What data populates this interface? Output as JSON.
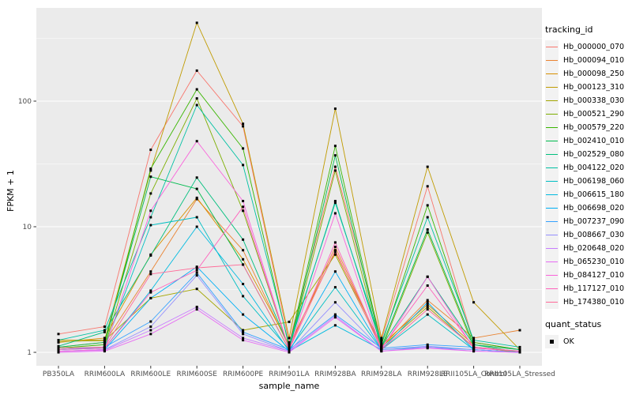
{
  "figure": {
    "background": "#FFFFFF",
    "panel_background": "#EBEBEB",
    "grid_color": "#FFFFFF",
    "tick_label_color": "#4D4D4D",
    "point_color": "#000000"
  },
  "axes": {
    "x_label": "sample_name",
    "y_label": "FPKM + 1",
    "y_tick_labels": [
      "1",
      "10",
      "100"
    ],
    "y_tick_values": [
      1,
      10,
      100
    ],
    "y_minor_values": [
      3.1623,
      31.623,
      316.23
    ]
  },
  "legend": {
    "tracking_title": "tracking_id",
    "quant_title": "quant_status",
    "quant_items": [
      {
        "label": "OK",
        "symbol": "black-square"
      }
    ]
  },
  "chart_data": {
    "type": "line",
    "title": "",
    "xlabel": "sample_name",
    "ylabel": "FPKM + 1",
    "y_scale": "log10",
    "ylim": [
      1,
      450
    ],
    "grid": true,
    "legend_position": "right",
    "point_shape": "square",
    "point_color": "#000000",
    "categories": [
      "PB350LA",
      "RRIM600LA",
      "RRIM600LE",
      "RRIM600SE",
      "RRIM600PE",
      "RRIM901LA",
      "RRIM928BA",
      "RRIM928LA",
      "RRIM928LE",
      "RRII105LA_Control",
      "RRII105LA_Stressed"
    ],
    "series": [
      {
        "name": "Hb_000000_070",
        "color": "#F8766D",
        "values": [
          1.4,
          1.6,
          41,
          175,
          63,
          1.2,
          30,
          1.25,
          21,
          1.2,
          1.05
        ]
      },
      {
        "name": "Hb_000094_010",
        "color": "#EA8331",
        "values": [
          1.1,
          1.2,
          4.4,
          16.6,
          6.5,
          1.1,
          6.9,
          1.1,
          2.6,
          1.3,
          1.5
        ]
      },
      {
        "name": "Hb_000098_250",
        "color": "#D89000",
        "values": [
          1.2,
          1.3,
          6.0,
          17.0,
          5.5,
          1.15,
          6.3,
          1.15,
          2.4,
          1.15,
          1.05
        ]
      },
      {
        "name": "Hb_000123_310",
        "color": "#C09B00",
        "values": [
          1.25,
          1.25,
          28,
          420,
          66,
          1.3,
          87,
          1.3,
          30,
          2.5,
          1.05
        ]
      },
      {
        "name": "Hb_000338_030",
        "color": "#A3A500",
        "values": [
          1.22,
          1.24,
          2.7,
          3.2,
          1.5,
          1.75,
          6.0,
          1.1,
          2.3,
          1.1,
          1.0
        ]
      },
      {
        "name": "Hb_000521_290",
        "color": "#7CAE00",
        "values": [
          1.05,
          1.1,
          18.4,
          105,
          13.4,
          1.05,
          28,
          1.05,
          9.0,
          1.1,
          1.0
        ]
      },
      {
        "name": "Hb_000579_220",
        "color": "#39B600",
        "values": [
          1.08,
          1.15,
          29,
          124,
          42,
          1.1,
          44,
          1.15,
          14.8,
          1.2,
          1.05
        ]
      },
      {
        "name": "Hb_002410_010",
        "color": "#00BB4E",
        "values": [
          1.1,
          1.2,
          25,
          20,
          5.0,
          1.05,
          37,
          1.1,
          9.5,
          1.15,
          1.0
        ]
      },
      {
        "name": "Hb_002529_080",
        "color": "#00BF7D",
        "values": [
          1.12,
          1.45,
          5.9,
          24.6,
          7.9,
          1.1,
          16,
          1.12,
          4.0,
          1.15,
          1.05
        ]
      },
      {
        "name": "Hb_004122_020",
        "color": "#00C1A3",
        "values": [
          1.25,
          1.5,
          11.9,
          93,
          31,
          1.15,
          15.5,
          1.2,
          11.9,
          1.25,
          1.1
        ]
      },
      {
        "name": "Hb_006198_060",
        "color": "#00BFC4",
        "values": [
          1.05,
          1.1,
          10.3,
          11.9,
          2.8,
          1.05,
          3.3,
          1.05,
          2.0,
          1.05,
          1.0
        ]
      },
      {
        "name": "Hb_006615_180",
        "color": "#00BAE0",
        "values": [
          1.05,
          1.08,
          3.1,
          10.0,
          3.5,
          1.02,
          1.64,
          1.05,
          1.1,
          1.05,
          1.0
        ]
      },
      {
        "name": "Hb_006698_020",
        "color": "#00B0F6",
        "values": [
          1.02,
          1.05,
          2.7,
          4.8,
          2.0,
          1.02,
          4.4,
          1.05,
          2.5,
          1.05,
          1.0
        ]
      },
      {
        "name": "Hb_007237_090",
        "color": "#35A2FF",
        "values": [
          1.05,
          1.1,
          1.76,
          4.3,
          1.45,
          1.05,
          2.0,
          1.08,
          1.15,
          1.1,
          1.02
        ]
      },
      {
        "name": "Hb_008667_030",
        "color": "#9590FF",
        "values": [
          1.02,
          1.05,
          1.6,
          4.1,
          1.4,
          1.02,
          2.5,
          1.05,
          1.12,
          1.05,
          1.0
        ]
      },
      {
        "name": "Hb_020648_020",
        "color": "#C77CFF",
        "values": [
          1.02,
          1.04,
          1.5,
          2.3,
          1.3,
          1.02,
          1.95,
          1.02,
          1.1,
          1.02,
          1.0
        ]
      },
      {
        "name": "Hb_065230_010",
        "color": "#E76BF3",
        "values": [
          1.0,
          1.02,
          1.4,
          2.2,
          1.25,
          1.0,
          1.9,
          1.02,
          1.08,
          1.02,
          1.0
        ]
      },
      {
        "name": "Hb_084127_010",
        "color": "#FA62DB",
        "values": [
          1.02,
          1.05,
          13.4,
          48,
          16,
          1.05,
          12.8,
          1.05,
          4.0,
          1.08,
          1.02
        ]
      },
      {
        "name": "Hb_117127_010",
        "color": "#FF62BC",
        "values": [
          1.05,
          1.08,
          3.0,
          4.5,
          14.4,
          1.05,
          7.5,
          1.08,
          3.4,
          1.1,
          1.02
        ]
      },
      {
        "name": "Hb_174380_010",
        "color": "#FF6A98",
        "values": [
          1.08,
          1.1,
          4.2,
          4.7,
          5.0,
          1.05,
          6.5,
          1.05,
          2.2,
          1.1,
          1.02
        ]
      }
    ]
  }
}
